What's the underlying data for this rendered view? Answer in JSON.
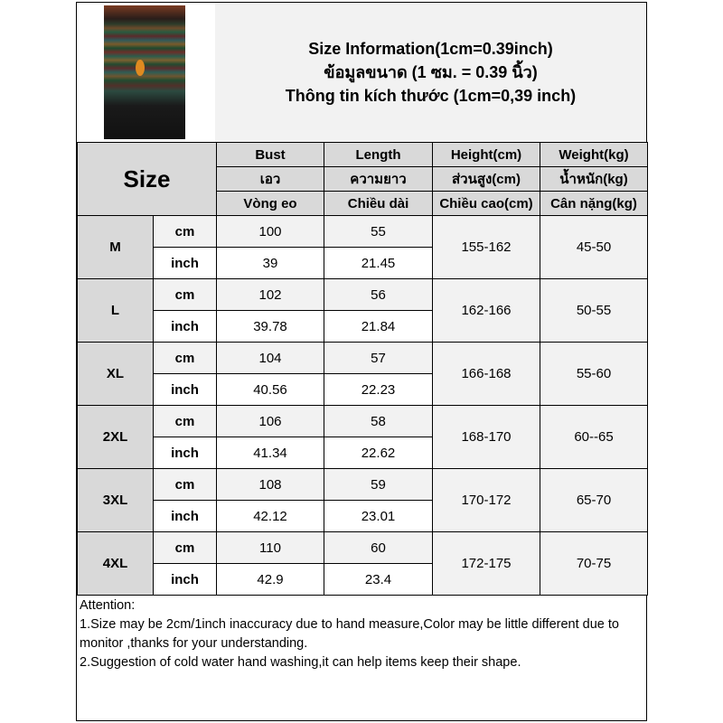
{
  "title_lines": [
    "Size Information(1cm=0.39inch)",
    "ข้อมูลขนาด (1 ซม. = 0.39 นิ้ว)",
    "Thông tin kích thước (1cm=0,39 inch)"
  ],
  "size_header": "Size",
  "headers": [
    [
      "Bust",
      "Length",
      "Height(cm)",
      "Weight(kg)"
    ],
    [
      "เอว",
      "ความยาว",
      "ส่วนสูง(cm)",
      "น้ำหนัก(kg)"
    ],
    [
      "Vòng eo",
      "Chiều dài",
      "Chiều cao(cm)",
      "Cân nặng(kg)"
    ]
  ],
  "unit_labels": {
    "cm": "cm",
    "inch": "inch"
  },
  "rows": [
    {
      "size": "M",
      "bust_cm": "100",
      "length_cm": "55",
      "bust_inch": "39",
      "length_inch": "21.45",
      "height": "155-162",
      "weight": "45-50"
    },
    {
      "size": "L",
      "bust_cm": "102",
      "length_cm": "56",
      "bust_inch": "39.78",
      "length_inch": "21.84",
      "height": "162-166",
      "weight": "50-55"
    },
    {
      "size": "XL",
      "bust_cm": "104",
      "length_cm": "57",
      "bust_inch": "40.56",
      "length_inch": "22.23",
      "height": "166-168",
      "weight": "55-60"
    },
    {
      "size": "2XL",
      "bust_cm": "106",
      "length_cm": "58",
      "bust_inch": "41.34",
      "length_inch": "22.62",
      "height": "168-170",
      "weight": "60--65"
    },
    {
      "size": "3XL",
      "bust_cm": "108",
      "length_cm": "59",
      "bust_inch": "42.12",
      "length_inch": "23.01",
      "height": "170-172",
      "weight": "65-70"
    },
    {
      "size": "4XL",
      "bust_cm": "110",
      "length_cm": "60",
      "bust_inch": "42.9",
      "length_inch": "23.4",
      "height": "172-175",
      "weight": "70-75"
    }
  ],
  "notes": [
    "Attention:",
    "1.Size may be 2cm/1inch inaccuracy due to hand measure,Color may be little different due to monitor ,thanks for your understanding.",
    "2.Suggestion of cold water hand washing,it can help items keep their shape."
  ],
  "colors": {
    "header_gray": "#d9d9d9",
    "light_gray": "#f2f2f2",
    "border": "#000000"
  }
}
